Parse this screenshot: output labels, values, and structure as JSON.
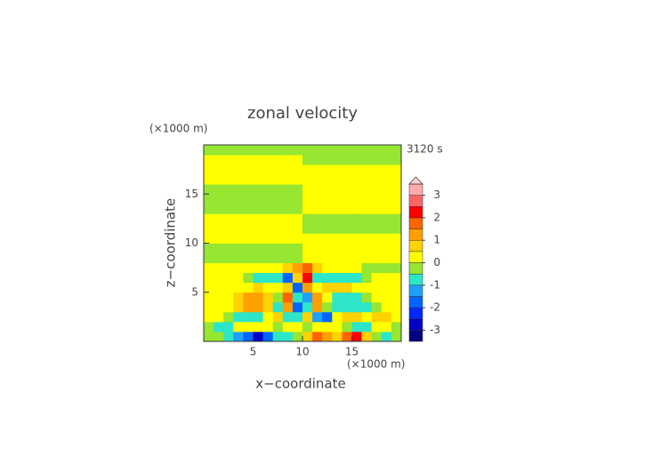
{
  "chart_data": {
    "type": "contour",
    "title": "zonal velocity",
    "y_unit": "(×1000 m)",
    "x_unit": "(×1000 m)",
    "time_label": "3120 s",
    "xlabel": "x−coordinate",
    "ylabel": "z−coordinate",
    "xlim": [
      0,
      20
    ],
    "ylim": [
      0,
      20
    ],
    "xticks": [
      5,
      10,
      15
    ],
    "yticks": [
      5,
      10,
      15
    ],
    "x": [
      0.5,
      1.5,
      2.5,
      3.5,
      4.5,
      5.5,
      6.5,
      7.5,
      8.5,
      9.5,
      10.5,
      11.5,
      12.5,
      13.5,
      14.5,
      15.5,
      16.5,
      17.5,
      18.5,
      19.5
    ],
    "y": [
      0.5,
      1.5,
      2.5,
      3.5,
      4.5,
      5.5,
      6.5,
      7.5,
      8.5,
      9.5,
      10.5,
      11.5,
      12.5,
      13.5,
      14.5,
      15.5,
      16.5,
      17.5,
      18.5,
      19.5
    ],
    "z": [
      [
        -0.2,
        -0.3,
        -0.7,
        -1.3,
        -1.8,
        -2.6,
        -1.7,
        -1.0,
        -0.6,
        -0.4,
        0.9,
        1.6,
        1.3,
        0.8,
        1.6,
        2.2,
        0.9,
        -0.4,
        -0.9,
        -0.3
      ],
      [
        -0.2,
        -0.8,
        -0.6,
        0.2,
        0.2,
        0.3,
        0.2,
        -0.3,
        0.2,
        0.3,
        -0.2,
        0.2,
        0.3,
        0.3,
        -0.5,
        -0.8,
        -0.6,
        0.3,
        0.2,
        -0.2
      ],
      [
        0.2,
        0.2,
        -0.3,
        -0.8,
        -0.9,
        -0.7,
        0.3,
        0.9,
        -0.6,
        -0.7,
        0.6,
        -1.2,
        -1.6,
        0.3,
        0.8,
        0.6,
        0.2,
        0.6,
        0.8,
        0.2
      ],
      [
        0.2,
        0.2,
        0.2,
        0.7,
        1.2,
        1.3,
        0.8,
        -0.6,
        1.4,
        -1.7,
        -0.8,
        1.3,
        -0.5,
        -0.9,
        -1.0,
        -0.8,
        -0.6,
        -0.2,
        0.2,
        0.2
      ],
      [
        0.2,
        0.2,
        0.2,
        0.6,
        1.1,
        1.2,
        0.9,
        -0.2,
        1.6,
        -0.7,
        -1.2,
        1.1,
        0.3,
        -0.7,
        -0.8,
        -0.6,
        -0.3,
        0.2,
        0.2,
        0.2
      ],
      [
        0.2,
        0.2,
        0.2,
        0.2,
        0.3,
        0.6,
        0.4,
        0.2,
        0.9,
        -1.8,
        1.3,
        0.4,
        0.6,
        0.8,
        0.5,
        0.2,
        0.2,
        0.2,
        0.2,
        0.2
      ],
      [
        0.2,
        0.2,
        0.2,
        0.2,
        -0.3,
        -0.7,
        -0.8,
        -0.9,
        -1.6,
        0.7,
        2.1,
        -0.6,
        -0.8,
        -0.8,
        -0.7,
        -0.6,
        -0.3,
        0.2,
        0.2,
        0.2
      ],
      [
        0.2,
        0.2,
        0.2,
        0.2,
        0.2,
        0.2,
        0.2,
        0.2,
        0.6,
        1.2,
        1.8,
        0.8,
        0.2,
        0.2,
        0.2,
        0.2,
        -0.2,
        -0.2,
        -0.2,
        -0.2
      ],
      [
        -0.2,
        -0.2,
        -0.2,
        -0.2,
        -0.2,
        -0.2,
        -0.2,
        -0.2,
        -0.2,
        -0.2,
        0.2,
        0.2,
        0.2,
        0.2,
        0.2,
        0.2,
        0.2,
        0.2,
        0.2,
        0.2
      ],
      [
        -0.2,
        -0.2,
        -0.2,
        -0.2,
        -0.2,
        -0.2,
        -0.2,
        -0.2,
        -0.2,
        -0.2,
        0.2,
        0.2,
        0.2,
        0.2,
        0.2,
        0.2,
        0.2,
        0.2,
        0.2,
        0.2
      ],
      [
        0.2,
        0.2,
        0.2,
        0.2,
        0.2,
        0.2,
        0.2,
        0.2,
        0.2,
        0.2,
        0.2,
        0.2,
        0.2,
        0.2,
        0.2,
        0.2,
        0.2,
        0.2,
        0.2,
        0.2
      ],
      [
        0.2,
        0.2,
        0.2,
        0.2,
        0.2,
        0.2,
        0.2,
        0.2,
        0.2,
        0.2,
        -0.2,
        -0.2,
        -0.2,
        -0.2,
        -0.2,
        -0.2,
        -0.2,
        -0.2,
        -0.2,
        -0.2
      ],
      [
        0.2,
        0.2,
        0.2,
        0.2,
        0.2,
        0.2,
        0.2,
        0.2,
        0.2,
        0.2,
        -0.2,
        -0.2,
        -0.2,
        -0.2,
        -0.2,
        -0.2,
        -0.2,
        -0.2,
        -0.2,
        -0.2
      ],
      [
        -0.2,
        -0.2,
        -0.2,
        -0.2,
        -0.2,
        -0.2,
        -0.2,
        -0.2,
        -0.2,
        -0.2,
        0.2,
        0.2,
        0.2,
        0.2,
        0.2,
        0.2,
        0.2,
        0.2,
        0.2,
        0.2
      ],
      [
        -0.2,
        -0.2,
        -0.2,
        -0.2,
        -0.2,
        -0.2,
        -0.2,
        -0.2,
        -0.2,
        -0.2,
        0.2,
        0.2,
        0.2,
        0.2,
        0.2,
        0.2,
        0.2,
        0.2,
        0.2,
        0.2
      ],
      [
        -0.2,
        -0.2,
        -0.2,
        -0.2,
        -0.2,
        -0.2,
        -0.2,
        -0.2,
        -0.2,
        -0.2,
        0.2,
        0.2,
        0.2,
        0.2,
        0.2,
        0.2,
        0.2,
        0.2,
        0.2,
        0.2
      ],
      [
        0.2,
        0.2,
        0.2,
        0.2,
        0.2,
        0.2,
        0.2,
        0.2,
        0.2,
        0.2,
        0.2,
        0.2,
        0.2,
        0.2,
        0.2,
        0.2,
        0.2,
        0.2,
        0.2,
        0.2
      ],
      [
        0.2,
        0.2,
        0.2,
        0.2,
        0.2,
        0.2,
        0.2,
        0.2,
        0.2,
        0.2,
        0.2,
        0.2,
        0.2,
        0.2,
        0.2,
        0.2,
        0.2,
        0.2,
        0.2,
        0.2
      ],
      [
        0.2,
        0.2,
        0.2,
        0.2,
        0.2,
        0.2,
        0.2,
        0.2,
        0.2,
        0.2,
        -0.2,
        -0.2,
        -0.2,
        -0.2,
        -0.2,
        -0.2,
        -0.2,
        -0.2,
        -0.2,
        -0.2
      ],
      [
        -0.2,
        -0.2,
        -0.2,
        -0.2,
        -0.2,
        -0.2,
        -0.2,
        -0.2,
        -0.2,
        -0.2,
        -0.2,
        -0.2,
        -0.2,
        -0.2,
        -0.2,
        -0.2,
        -0.2,
        -0.2,
        -0.2,
        -0.2
      ]
    ],
    "levels": [
      -3.5,
      -3,
      -2.5,
      -2,
      -1.5,
      -1,
      -0.5,
      0,
      0.5,
      1,
      1.5,
      2,
      2.5,
      3,
      3.5
    ],
    "colors": [
      "#000080",
      "#0000c8",
      "#0028ff",
      "#0064ff",
      "#1ea0ff",
      "#2de6c8",
      "#96e632",
      "#ffff00",
      "#ffd200",
      "#ffa000",
      "#ff6400",
      "#ff0000",
      "#ff6464",
      "#ffaaaa"
    ],
    "extend_color": "#ffd2d2",
    "clim": [
      -3.5,
      3.5
    ],
    "cticks": [
      -3,
      -2,
      -1,
      0,
      1,
      2,
      3
    ]
  }
}
